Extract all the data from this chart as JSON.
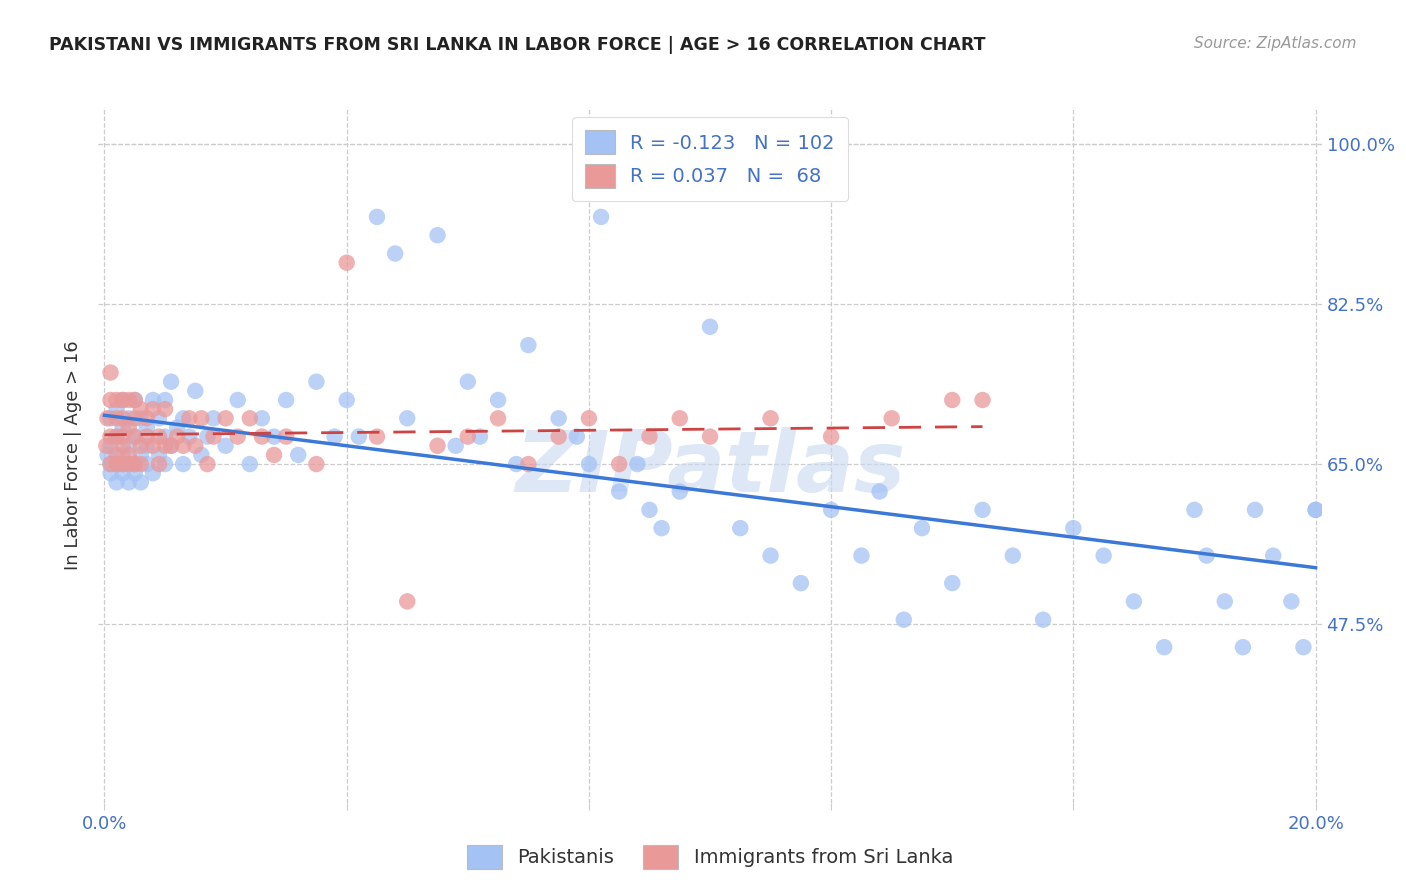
{
  "title": "PAKISTANI VS IMMIGRANTS FROM SRI LANKA IN LABOR FORCE | AGE > 16 CORRELATION CHART",
  "source": "Source: ZipAtlas.com",
  "ylabel": "In Labor Force | Age > 16",
  "xlim": [
    -0.001,
    0.201
  ],
  "ylim": [
    0.28,
    1.04
  ],
  "yticks": [
    0.475,
    0.65,
    0.825,
    1.0
  ],
  "ytick_labels": [
    "47.5%",
    "65.0%",
    "82.5%",
    "100.0%"
  ],
  "xticks": [
    0.0,
    0.04,
    0.08,
    0.12,
    0.16,
    0.2
  ],
  "blue_R": -0.123,
  "blue_N": 102,
  "pink_R": 0.037,
  "pink_N": 68,
  "blue_color": "#a4c2f4",
  "pink_color": "#ea9999",
  "blue_line_color": "#3c78d8",
  "pink_line_color": "#cc4444",
  "legend_label_blue": "Pakistanis",
  "legend_label_pink": "Immigrants from Sri Lanka",
  "watermark": "ZIPatlas",
  "blue_x": [
    0.0005,
    0.001,
    0.001,
    0.001,
    0.001,
    0.002,
    0.002,
    0.002,
    0.002,
    0.003,
    0.003,
    0.003,
    0.003,
    0.003,
    0.004,
    0.004,
    0.004,
    0.004,
    0.005,
    0.005,
    0.005,
    0.005,
    0.006,
    0.006,
    0.006,
    0.007,
    0.007,
    0.007,
    0.008,
    0.008,
    0.009,
    0.009,
    0.01,
    0.01,
    0.01,
    0.011,
    0.011,
    0.012,
    0.013,
    0.013,
    0.014,
    0.015,
    0.016,
    0.017,
    0.018,
    0.02,
    0.022,
    0.024,
    0.026,
    0.028,
    0.03,
    0.032,
    0.035,
    0.038,
    0.04,
    0.042,
    0.045,
    0.048,
    0.05,
    0.055,
    0.058,
    0.06,
    0.062,
    0.065,
    0.068,
    0.07,
    0.075,
    0.078,
    0.08,
    0.082,
    0.085,
    0.088,
    0.09,
    0.092,
    0.095,
    0.1,
    0.105,
    0.11,
    0.115,
    0.12,
    0.125,
    0.128,
    0.132,
    0.135,
    0.14,
    0.145,
    0.15,
    0.155,
    0.16,
    0.165,
    0.17,
    0.175,
    0.18,
    0.182,
    0.185,
    0.188,
    0.19,
    0.193,
    0.196,
    0.198,
    0.2,
    0.2
  ],
  "blue_y": [
    0.66,
    0.65,
    0.67,
    0.7,
    0.64,
    0.65,
    0.68,
    0.63,
    0.71,
    0.66,
    0.64,
    0.69,
    0.72,
    0.65,
    0.67,
    0.63,
    0.7,
    0.65,
    0.64,
    0.68,
    0.72,
    0.65,
    0.66,
    0.7,
    0.63,
    0.67,
    0.65,
    0.69,
    0.64,
    0.72,
    0.66,
    0.7,
    0.65,
    0.68,
    0.72,
    0.67,
    0.74,
    0.69,
    0.65,
    0.7,
    0.68,
    0.73,
    0.66,
    0.68,
    0.7,
    0.67,
    0.72,
    0.65,
    0.7,
    0.68,
    0.72,
    0.66,
    0.74,
    0.68,
    0.72,
    0.68,
    0.92,
    0.88,
    0.7,
    0.9,
    0.67,
    0.74,
    0.68,
    0.72,
    0.65,
    0.78,
    0.7,
    0.68,
    0.65,
    0.92,
    0.62,
    0.65,
    0.6,
    0.58,
    0.62,
    0.8,
    0.58,
    0.55,
    0.52,
    0.6,
    0.55,
    0.62,
    0.48,
    0.58,
    0.52,
    0.6,
    0.55,
    0.48,
    0.58,
    0.55,
    0.5,
    0.45,
    0.6,
    0.55,
    0.5,
    0.45,
    0.6,
    0.55,
    0.5,
    0.45,
    0.6,
    0.6
  ],
  "pink_x": [
    0.0003,
    0.0005,
    0.001,
    0.001,
    0.001,
    0.001,
    0.002,
    0.002,
    0.002,
    0.002,
    0.002,
    0.003,
    0.003,
    0.003,
    0.003,
    0.003,
    0.004,
    0.004,
    0.004,
    0.004,
    0.005,
    0.005,
    0.005,
    0.005,
    0.006,
    0.006,
    0.006,
    0.007,
    0.007,
    0.008,
    0.008,
    0.009,
    0.009,
    0.01,
    0.01,
    0.011,
    0.012,
    0.013,
    0.014,
    0.015,
    0.016,
    0.017,
    0.018,
    0.02,
    0.022,
    0.024,
    0.026,
    0.028,
    0.03,
    0.035,
    0.04,
    0.045,
    0.05,
    0.055,
    0.06,
    0.065,
    0.07,
    0.075,
    0.08,
    0.085,
    0.09,
    0.095,
    0.1,
    0.11,
    0.12,
    0.13,
    0.14,
    0.145
  ],
  "pink_y": [
    0.67,
    0.7,
    0.65,
    0.68,
    0.72,
    0.75,
    0.65,
    0.68,
    0.72,
    0.7,
    0.66,
    0.68,
    0.65,
    0.72,
    0.7,
    0.67,
    0.66,
    0.69,
    0.65,
    0.72,
    0.68,
    0.72,
    0.65,
    0.7,
    0.67,
    0.71,
    0.65,
    0.68,
    0.7,
    0.67,
    0.71,
    0.65,
    0.68,
    0.67,
    0.71,
    0.67,
    0.68,
    0.67,
    0.7,
    0.67,
    0.7,
    0.65,
    0.68,
    0.7,
    0.68,
    0.7,
    0.68,
    0.66,
    0.68,
    0.65,
    0.87,
    0.68,
    0.5,
    0.67,
    0.68,
    0.7,
    0.65,
    0.68,
    0.7,
    0.65,
    0.68,
    0.7,
    0.68,
    0.7,
    0.68,
    0.7,
    0.72,
    0.72
  ]
}
